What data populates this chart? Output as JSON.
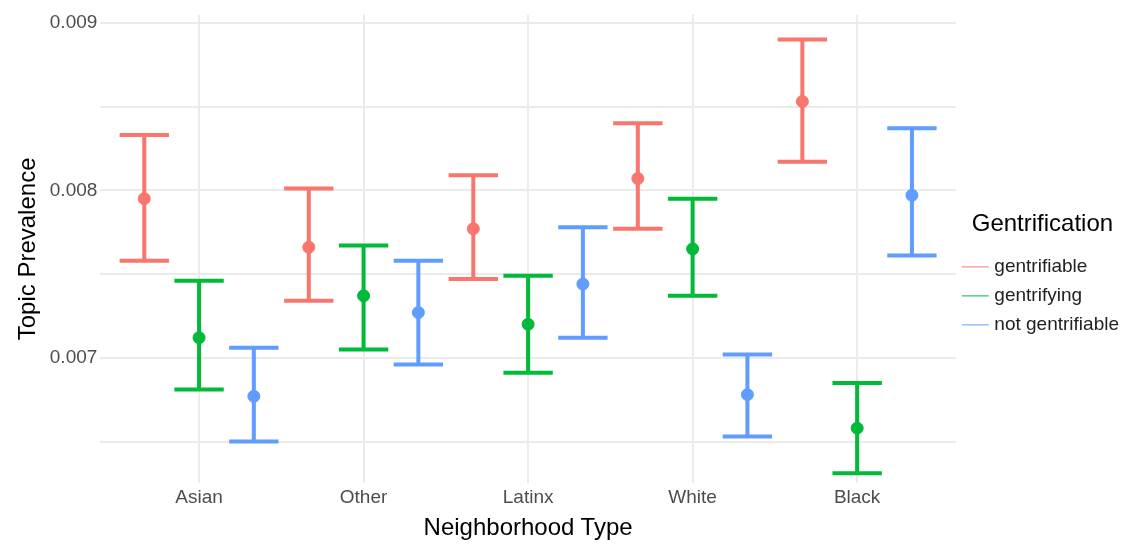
{
  "chart_data": {
    "type": "scatter",
    "xlabel": "Neighborhood Type",
    "ylabel": "Topic Prevalence",
    "legend_title": "Gentrification",
    "legend": "right",
    "grid": true,
    "marker": "circle",
    "categories": [
      "Asian",
      "Other",
      "Latinx",
      "White",
      "Black"
    ],
    "ylim": [
      0.00625,
      0.00905
    ],
    "yticks": [
      {
        "value": 0.0065,
        "label": null
      },
      0.007,
      {
        "value": 0.0075,
        "label": null
      },
      0.008,
      {
        "value": 0.0085,
        "label": null
      },
      0.009
    ],
    "series": [
      {
        "name": "gentrifiable",
        "color": "#f8766d",
        "values": [
          0.00795,
          0.00766,
          0.00777,
          0.00807,
          0.00853
        ],
        "errors": [
          [
            0.00758,
            0.00833
          ],
          [
            0.00734,
            0.00801
          ],
          [
            0.00747,
            0.00809
          ],
          [
            0.00777,
            0.0084
          ],
          [
            0.00817,
            0.0089
          ]
        ]
      },
      {
        "name": "gentrifying",
        "color": "#00ba38",
        "values": [
          0.00712,
          0.00737,
          0.0072,
          0.00765,
          0.00658
        ],
        "errors": [
          [
            0.00681,
            0.00746
          ],
          [
            0.00705,
            0.00767
          ],
          [
            0.00691,
            0.00749
          ],
          [
            0.00737,
            0.00795
          ],
          [
            0.00631,
            0.00685
          ]
        ]
      },
      {
        "name": "not gentrifiable",
        "color": "#619cff",
        "values": [
          0.00677,
          0.00727,
          0.00744,
          0.00678,
          0.00797
        ],
        "errors": [
          [
            0.0065,
            0.00706
          ],
          [
            0.00696,
            0.00758
          ],
          [
            0.00712,
            0.00778
          ],
          [
            0.00653,
            0.00702
          ],
          [
            0.00761,
            0.00837
          ]
        ]
      }
    ]
  }
}
